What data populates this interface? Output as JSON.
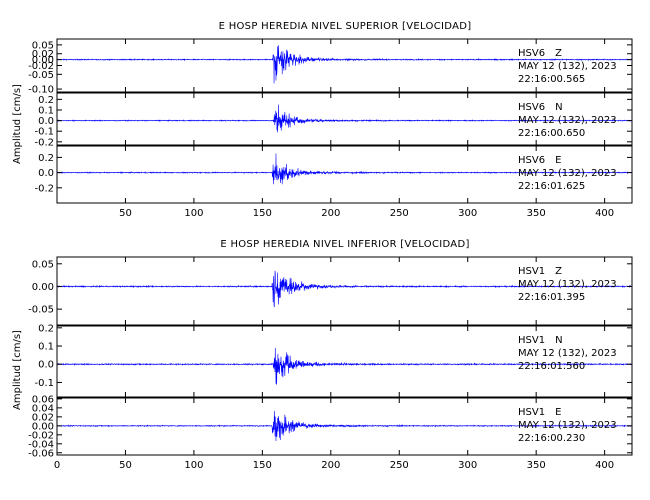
{
  "chart_data": [
    {
      "type": "line",
      "title": "E HOSP HEREDIA NIVEL SUPERIOR [VELOCIDAD]",
      "ylabel": "Amplitud [cm/s]",
      "xlabel": "",
      "xlim": [
        0,
        420
      ],
      "x_ticks": [
        50,
        100,
        150,
        200,
        250,
        300,
        350,
        400
      ],
      "x_tick_labels": [
        "50",
        "100",
        "150",
        "200",
        "250",
        "300",
        "350",
        "400"
      ],
      "line_color": "#0000ff",
      "grid": false,
      "series": [
        {
          "name": "HSV6 Z",
          "date": "MAY 12 (132), 2023",
          "time": "22:16:00.565",
          "ylim": [
            -0.11,
            0.07
          ],
          "y_ticks": [
            0.05,
            0.02,
            0.0,
            -0.02,
            -0.05,
            -0.1
          ],
          "y_tick_labels": [
            "0.05",
            "0.02",
            "0.00",
            "-0.02",
            "-0.05",
            "-0.10"
          ],
          "onset": 157,
          "noise": 0.0015,
          "peak": 0.1
        },
        {
          "name": "HSV6 N",
          "date": "MAY 12 (132), 2023",
          "time": "22:16:00.650",
          "ylim": [
            -0.23,
            0.26
          ],
          "y_ticks": [
            0.2,
            0.1,
            0.0,
            -0.1,
            -0.2
          ],
          "y_tick_labels": [
            "0.2",
            "0.1",
            "0.0",
            "-0.1",
            "-0.2"
          ],
          "onset": 158,
          "noise": 0.004,
          "peak": 0.2
        },
        {
          "name": "HSV6 E",
          "date": "MAY 12 (132), 2023",
          "time": "22:16:01.625",
          "ylim": [
            -0.4,
            0.35
          ],
          "y_ticks": [
            0.2,
            0.0,
            -0.2
          ],
          "y_tick_labels": [
            "0.2",
            "0.0",
            "-0.2"
          ],
          "onset": 157,
          "noise": 0.006,
          "peak": 0.32
        }
      ]
    },
    {
      "type": "line",
      "title": "E HOSP HEREDIA NIVEL INFERIOR [VELOCIDAD]",
      "ylabel": "Amplitud [cm/s]",
      "xlabel": "",
      "xlim": [
        0,
        420
      ],
      "x_ticks": [
        0,
        50,
        100,
        150,
        200,
        250,
        300,
        350,
        400
      ],
      "x_tick_labels": [
        "0",
        "50",
        "100",
        "150",
        "200",
        "250",
        "300",
        "350",
        "400"
      ],
      "line_color": "#0000ff",
      "grid": false,
      "series": [
        {
          "name": "HSV1 Z",
          "date": "MAY 12 (132), 2023",
          "time": "22:16:01.395",
          "ylim": [
            -0.085,
            0.065
          ],
          "y_ticks": [
            0.05,
            0.0,
            -0.05
          ],
          "y_tick_labels": [
            "0.05",
            "0.00",
            "-0.05"
          ],
          "onset": 157,
          "noise": 0.0012,
          "peak": 0.07
        },
        {
          "name": "HSV1 N",
          "date": "MAY 12 (132), 2023",
          "time": "22:16:01.560",
          "ylim": [
            -0.18,
            0.21
          ],
          "y_ticks": [
            0.2,
            0.1,
            0.0,
            -0.1
          ],
          "y_tick_labels": [
            "0.2",
            "0.1",
            "0.0",
            "-0.1"
          ],
          "onset": 158,
          "noise": 0.003,
          "peak": 0.16
        },
        {
          "name": "HSV1 E",
          "date": "MAY 12 (132), 2023",
          "time": "22:16:00.230",
          "ylim": [
            -0.065,
            0.062
          ],
          "y_ticks": [
            0.06,
            0.04,
            0.02,
            0.0,
            -0.02,
            -0.04,
            -0.06
          ],
          "y_tick_labels": [
            "0.06",
            "0.04",
            "0.02",
            "0.00",
            "-0.02",
            "-0.04",
            "-0.06"
          ],
          "onset": 157,
          "noise": 0.001,
          "peak": 0.06
        }
      ]
    }
  ]
}
